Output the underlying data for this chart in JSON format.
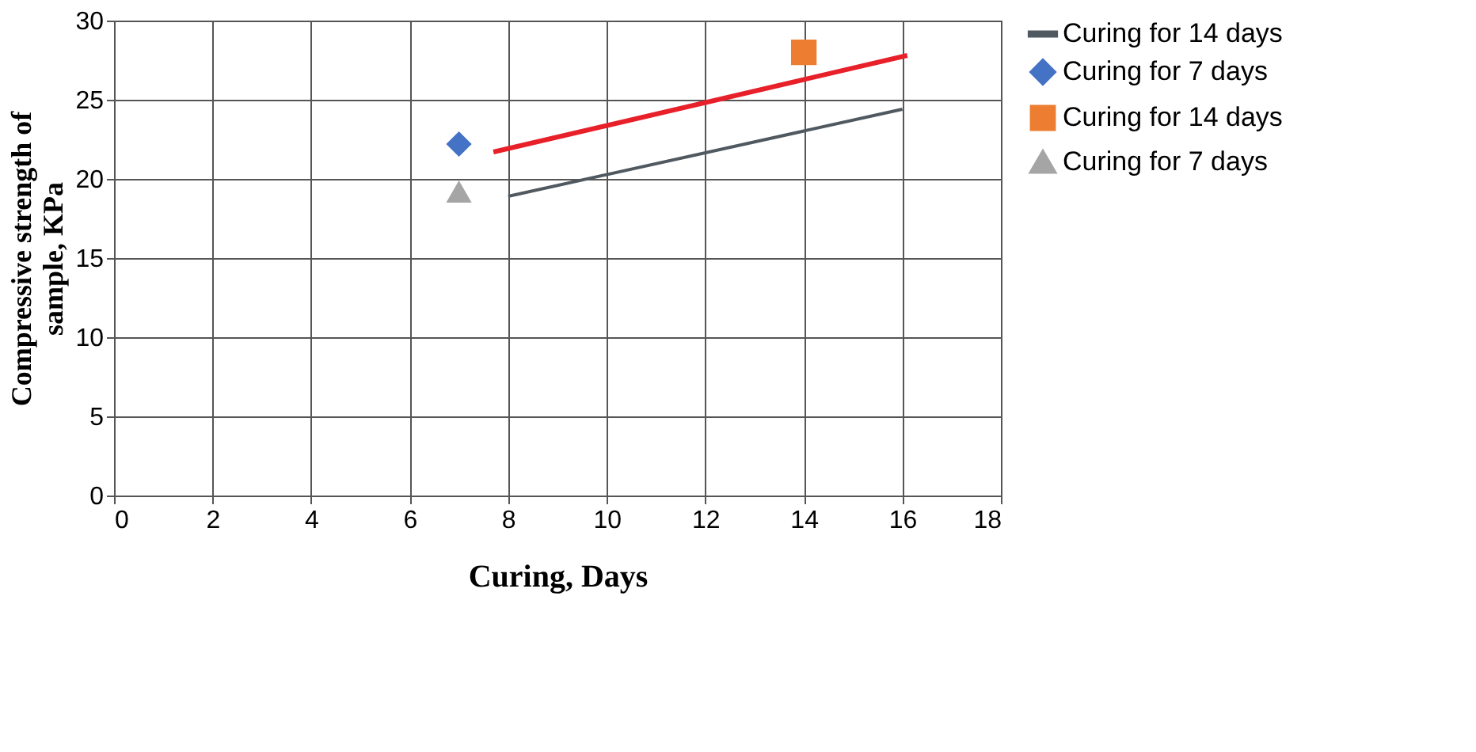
{
  "chart_data": {
    "type": "scatter",
    "xlabel": "Curing, Days",
    "ylabel": "Compressive strength of sample, KPa",
    "xlim": [
      0,
      18
    ],
    "xticks": [
      0,
      2,
      4,
      6,
      8,
      10,
      12,
      14,
      16,
      18
    ],
    "ylim": [
      0,
      30
    ],
    "yticks": [
      0,
      5,
      10,
      15,
      20,
      25,
      30
    ],
    "grid": true,
    "legend": "right",
    "series": [
      {
        "name": "Curing for 14 days",
        "type": "line",
        "color": "#505860",
        "x": [
          8,
          16
        ],
        "values": [
          18.9,
          24.4
        ],
        "marker": "none"
      },
      {
        "name": "Curing for 7 days",
        "color": "#4472c4",
        "x": [
          7
        ],
        "values": [
          22.2
        ],
        "marker": "diamond"
      },
      {
        "name": "Curing for 14 days",
        "color": "#ed7d31",
        "x": [
          14
        ],
        "values": [
          28.0
        ],
        "marker": "square"
      },
      {
        "name": "Curing for 7 days",
        "color": "#a5a5a5",
        "x": [
          7
        ],
        "values": [
          19.2
        ],
        "marker": "triangle"
      },
      {
        "type": "line",
        "color": "#e8202a",
        "x": [
          7.7,
          16.1
        ],
        "values": [
          21.7,
          27.8
        ],
        "marker": "none"
      }
    ]
  }
}
